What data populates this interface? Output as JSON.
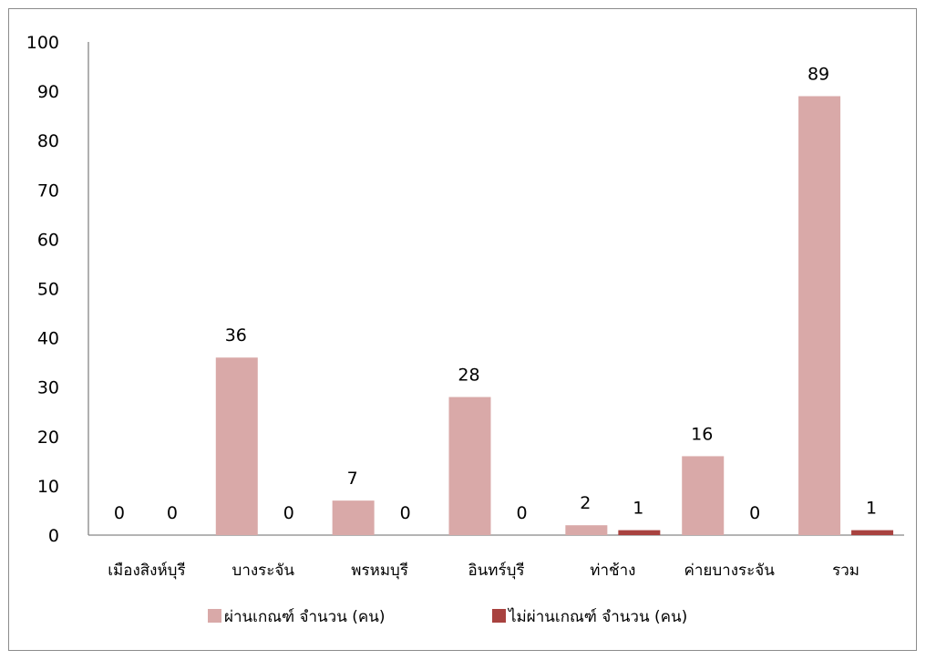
{
  "chart_data": {
    "type": "bar",
    "title": "",
    "xlabel": "",
    "ylabel": "",
    "ylim": [
      0,
      100
    ],
    "yticks": [
      0,
      10,
      20,
      30,
      40,
      50,
      60,
      70,
      80,
      90,
      100
    ],
    "grid": false,
    "legend_position": "bottom",
    "categories": [
      "เมืองสิงห์บุรี",
      "บางระจัน",
      "พรหมบุรี",
      "อินทร์บุรี",
      "ท่าช้าง",
      "ค่ายบางระจัน",
      "รวม"
    ],
    "series": [
      {
        "name": "ผ่านเกณฑ์  จำนวน (คน)",
        "color": "#d9a9a8",
        "values": [
          0,
          36,
          7,
          28,
          2,
          16,
          89
        ]
      },
      {
        "name": "ไม่ผ่านเกณฑ์ จำนวน (คน)",
        "color": "#a8423f",
        "values": [
          0,
          0,
          0,
          0,
          1,
          0,
          1
        ]
      }
    ]
  }
}
